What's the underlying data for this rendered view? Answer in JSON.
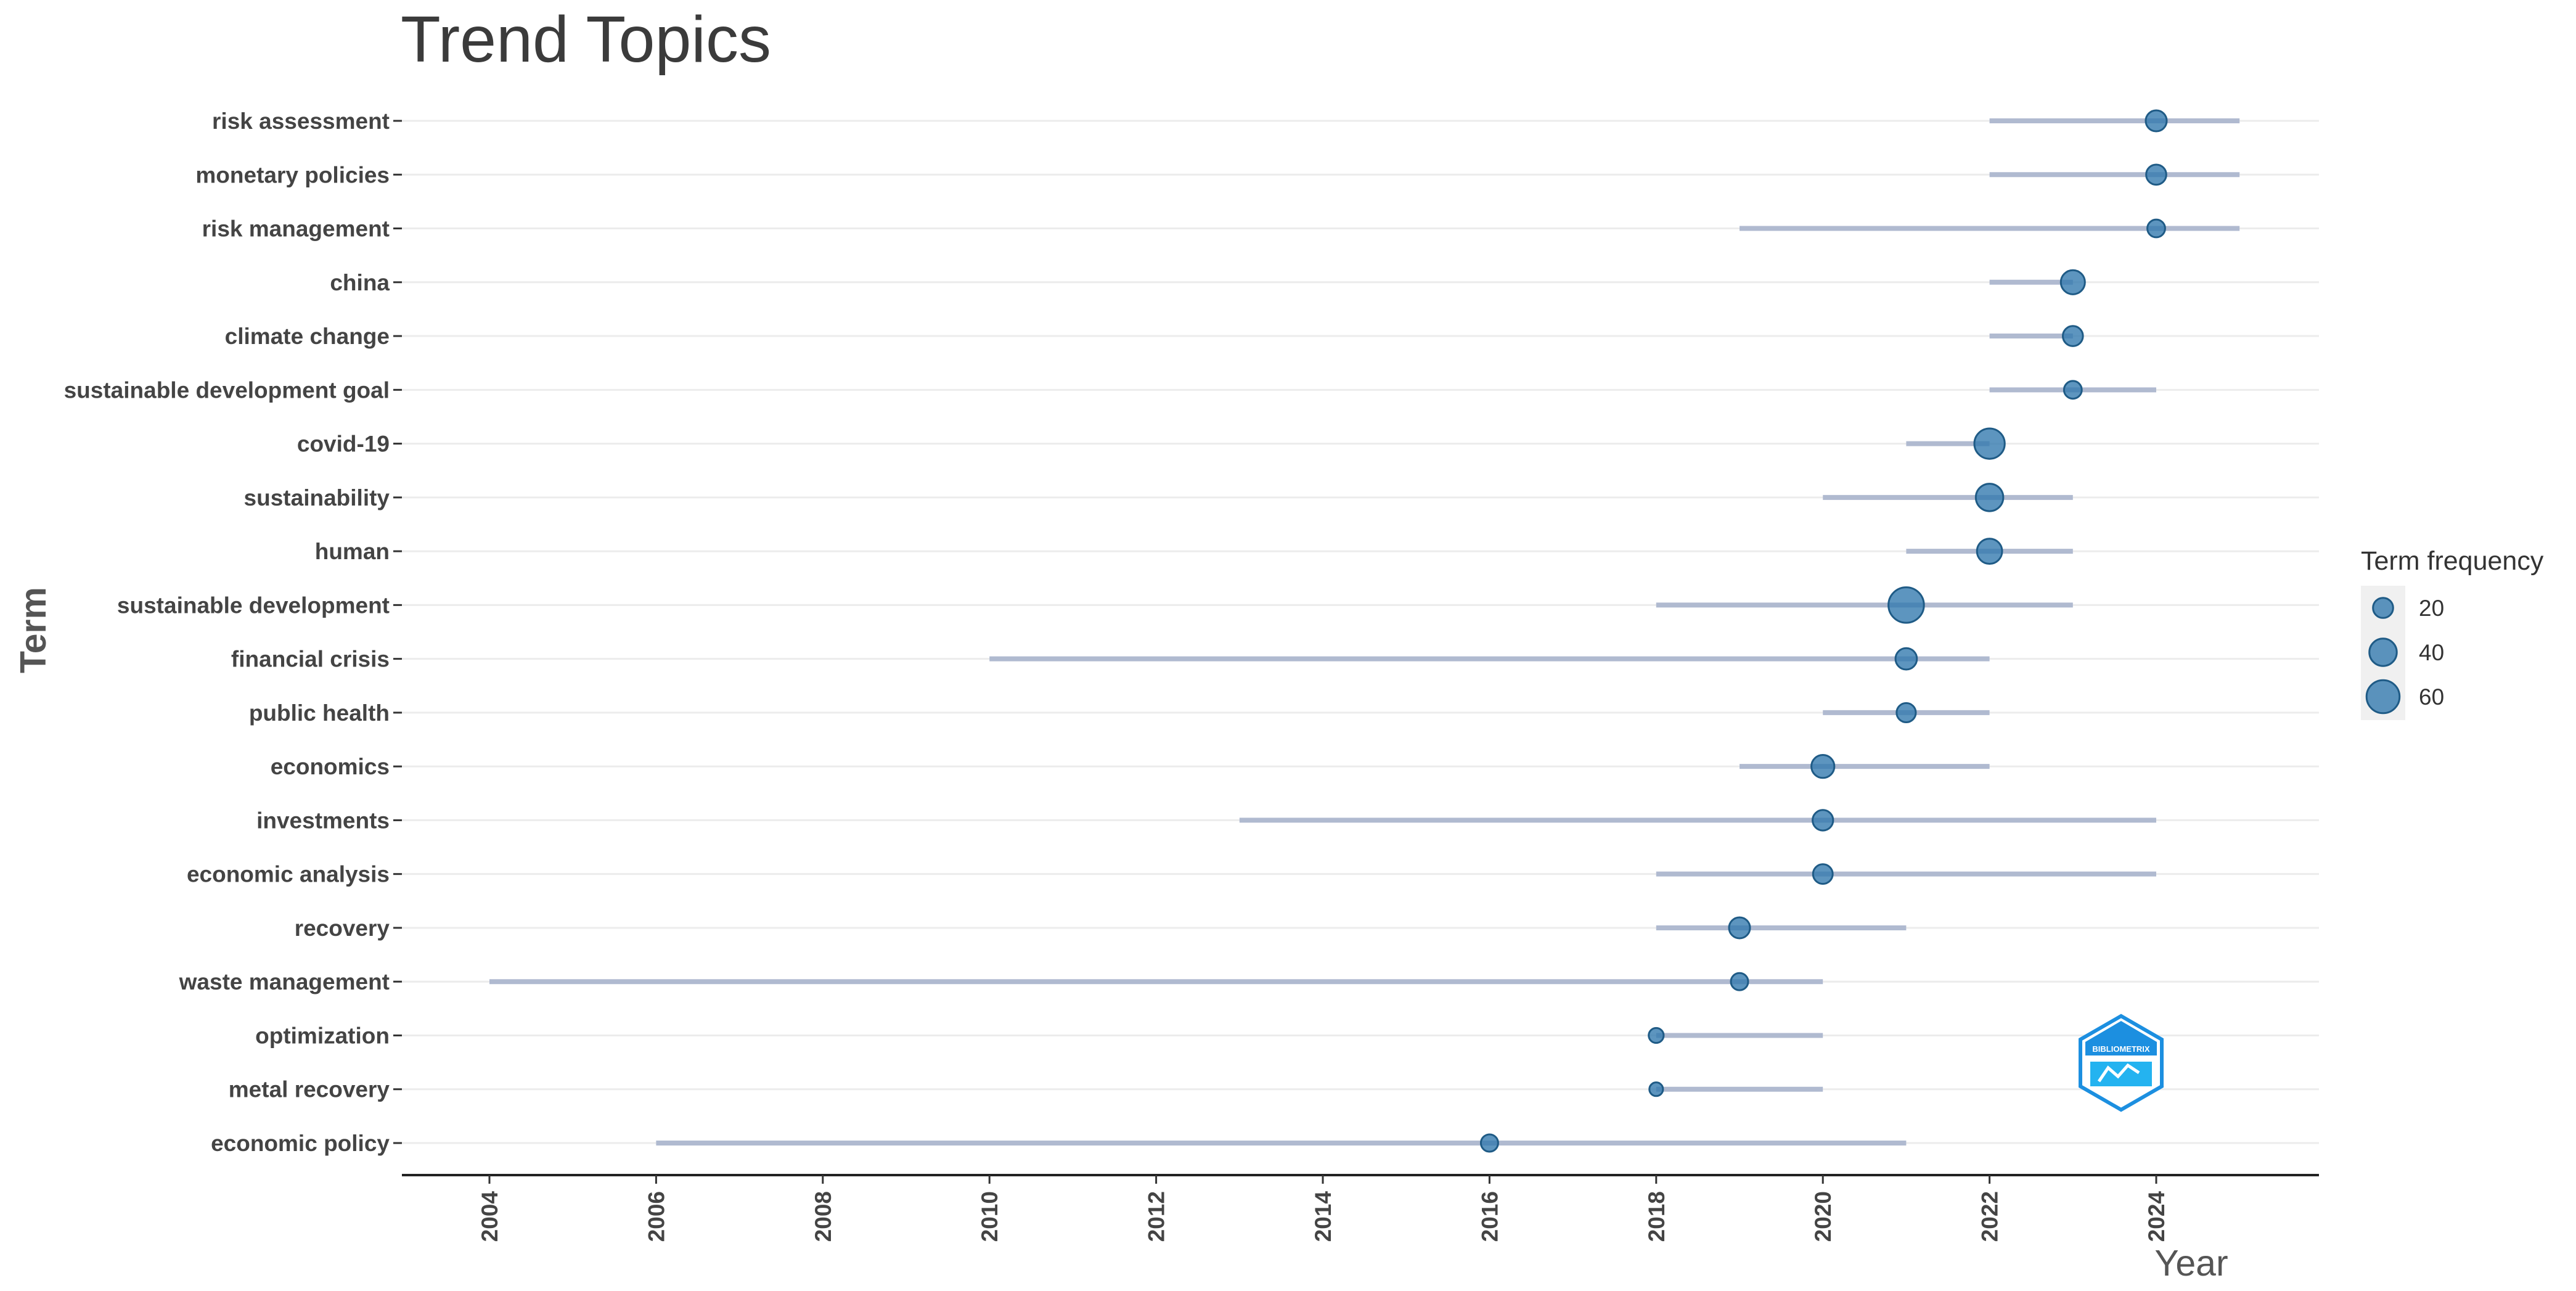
{
  "chart_data": {
    "type": "scatter",
    "title": "Trend Topics",
    "xlabel": "Year",
    "ylabel": "Term",
    "xlim": [
      2003,
      2026
    ],
    "x_ticks": [
      2004,
      2006,
      2008,
      2010,
      2012,
      2014,
      2016,
      2018,
      2020,
      2022,
      2024
    ],
    "grid": true,
    "legend": {
      "title": "Term frequency",
      "placement": "right",
      "sizes": [
        20,
        40,
        60
      ]
    },
    "terms": [
      {
        "term": "risk assessment",
        "start": 2022,
        "median": 2024,
        "end": 2025,
        "freq": 22
      },
      {
        "term": "monetary policies",
        "start": 2022,
        "median": 2024,
        "end": 2025,
        "freq": 20
      },
      {
        "term": "risk management",
        "start": 2019,
        "median": 2024,
        "end": 2025,
        "freq": 15
      },
      {
        "term": "china",
        "start": 2022,
        "median": 2023,
        "end": 2023,
        "freq": 30
      },
      {
        "term": "climate change",
        "start": 2022,
        "median": 2023,
        "end": 2023,
        "freq": 20
      },
      {
        "term": "sustainable development goal",
        "start": 2022,
        "median": 2023,
        "end": 2024,
        "freq": 15
      },
      {
        "term": "covid-19",
        "start": 2021,
        "median": 2022,
        "end": 2022,
        "freq": 50
      },
      {
        "term": "sustainability",
        "start": 2020,
        "median": 2022,
        "end": 2023,
        "freq": 40
      },
      {
        "term": "human",
        "start": 2021,
        "median": 2022,
        "end": 2023,
        "freq": 33
      },
      {
        "term": "sustainable development",
        "start": 2018,
        "median": 2021,
        "end": 2023,
        "freq": 70
      },
      {
        "term": "financial crisis",
        "start": 2010,
        "median": 2021,
        "end": 2022,
        "freq": 23
      },
      {
        "term": "public health",
        "start": 2020,
        "median": 2021,
        "end": 2022,
        "freq": 18
      },
      {
        "term": "economics",
        "start": 2019,
        "median": 2020,
        "end": 2022,
        "freq": 27
      },
      {
        "term": "investments",
        "start": 2013,
        "median": 2020,
        "end": 2024,
        "freq": 21
      },
      {
        "term": "economic analysis",
        "start": 2018,
        "median": 2020,
        "end": 2024,
        "freq": 19
      },
      {
        "term": "recovery",
        "start": 2018,
        "median": 2019,
        "end": 2021,
        "freq": 22
      },
      {
        "term": "waste management",
        "start": 2004,
        "median": 2019,
        "end": 2020,
        "freq": 14
      },
      {
        "term": "optimization",
        "start": 2018,
        "median": 2018,
        "end": 2020,
        "freq": 10
      },
      {
        "term": "metal recovery",
        "start": 2018,
        "median": 2018,
        "end": 2020,
        "freq": 8
      },
      {
        "term": "economic policy",
        "start": 2006,
        "median": 2016,
        "end": 2021,
        "freq": 14
      }
    ]
  },
  "logo": {
    "label": "BIBLIOMETRIX"
  },
  "colors": {
    "point": "#2f77ad",
    "range": "#b0bad0",
    "logo": "#1c8fe0"
  }
}
